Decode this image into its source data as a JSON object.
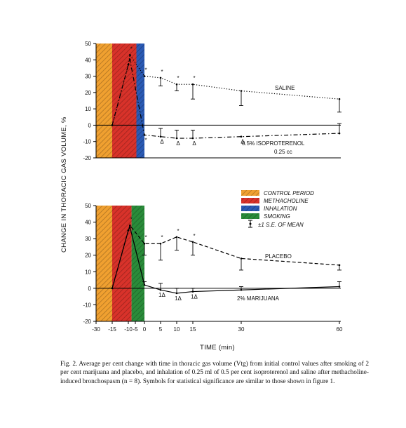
{
  "chart_data": [
    {
      "type": "line",
      "panel": "top",
      "ylim": [
        -20,
        50
      ],
      "xlim": [
        -30,
        60
      ],
      "yticks": [
        "50",
        "40",
        "30",
        "20",
        "10",
        "0",
        "-10",
        "-20"
      ],
      "bands": [
        {
          "from": -30,
          "to": -15,
          "color": "#f0a030",
          "label": "CONTROL PERIOD"
        },
        {
          "from": -15,
          "to": -5,
          "color": "#d8322a",
          "label": "METHACHOLINE"
        },
        {
          "from": -5,
          "to": 0,
          "color": "#2a5ab4",
          "label": "INHALATION"
        }
      ],
      "series": [
        {
          "name": "SALINE",
          "style": "dotted",
          "x": [
            -15,
            -10,
            -9,
            0,
            5,
            10,
            15,
            30,
            60
          ],
          "y": [
            0,
            37,
            43,
            30,
            29,
            25,
            25,
            21,
            16
          ],
          "err": [
            0,
            0,
            0,
            0,
            5,
            4,
            9,
            9,
            8
          ],
          "marks": [
            "",
            "",
            "*",
            "*",
            "*",
            "*",
            "*",
            "",
            ""
          ]
        },
        {
          "name": "0.5% ISOPROTERENOL",
          "style": "dashdot",
          "x": [
            -15,
            -10,
            -9,
            0,
            5,
            10,
            15,
            30,
            60
          ],
          "y": [
            0,
            37,
            40,
            -6,
            -7,
            -8,
            -8,
            -7,
            -5
          ],
          "err": [
            0,
            0,
            0,
            0,
            5,
            5,
            5,
            0,
            6
          ],
          "marks": [
            "",
            "",
            "",
            "*",
            "Δ",
            "Δ",
            "Δ",
            "Δ",
            ""
          ]
        }
      ],
      "annotations": [
        "SALINE",
        "0.5% ISOPROTERENOL",
        "0.25 cc"
      ]
    },
    {
      "type": "line",
      "panel": "bottom",
      "ylim": [
        -20,
        50
      ],
      "xlim": [
        -30,
        60
      ],
      "yticks": [
        "50",
        "40",
        "30",
        "20",
        "10",
        "0",
        "-10",
        "-20"
      ],
      "xticks": [
        "-30",
        "-15",
        "-10",
        "-5",
        "0",
        "5",
        "10",
        "15",
        "30",
        "60"
      ],
      "bands": [
        {
          "from": -30,
          "to": -15,
          "color": "#f0a030",
          "label": "CONTROL PERIOD"
        },
        {
          "from": -15,
          "to": -8,
          "color": "#d8322a",
          "label": "METHACHOLINE"
        },
        {
          "from": -8,
          "to": 0,
          "color": "#2a8c3a",
          "label": "SMOKING"
        }
      ],
      "series": [
        {
          "name": "PLACEBO",
          "style": "dashed",
          "x": [
            -15,
            -10,
            -9,
            0,
            5,
            10,
            15,
            30,
            60
          ],
          "y": [
            0,
            35,
            38,
            27,
            27,
            31,
            28,
            18,
            14
          ],
          "err": [
            0,
            0,
            0,
            7,
            10,
            8,
            8,
            7,
            3
          ],
          "marks": [
            "",
            "",
            "*",
            "*",
            "*",
            "*",
            "*",
            "",
            ""
          ]
        },
        {
          "name": "2% MARIJUANA",
          "style": "solid",
          "x": [
            -15,
            -10,
            -9,
            0,
            5,
            10,
            15,
            30,
            60
          ],
          "y": [
            0,
            35,
            37,
            2,
            -1,
            -3,
            -2,
            -1,
            1
          ],
          "err": [
            0,
            0,
            0,
            2,
            4,
            3,
            2,
            2,
            3
          ],
          "marks": [
            "",
            "",
            "",
            "",
            "1Δ",
            "1Δ",
            "1Δ",
            "",
            ""
          ]
        }
      ],
      "annotations": [
        "PLACEBO",
        "2% MARIJUANA"
      ]
    }
  ],
  "legend": {
    "items": [
      {
        "label": "CONTROL PERIOD",
        "color": "#f0a030"
      },
      {
        "label": "METHACHOLINE",
        "color": "#d8322a"
      },
      {
        "label": "INHALATION",
        "color": "#2a5ab4"
      },
      {
        "label": "SMOKING",
        "color": "#2a8c3a"
      }
    ],
    "sem_label": "±1 S.E. OF MEAN"
  },
  "ylabel": "CHANGE IN THORACIC GAS VOLUME, %",
  "xlabel": "TIME (min)",
  "caption": "Fig. 2. Average per cent change with time in thoracic gas volume (Vtg) from initial control values after smoking of 2 per cent marijuana and placebo, and inhalation of 0.25 ml of 0.5 per cent isoproterenol and saline after methacholine-induced bronchospasm (n = 8). Symbols for statistical significance are similar to those shown in figure 1."
}
